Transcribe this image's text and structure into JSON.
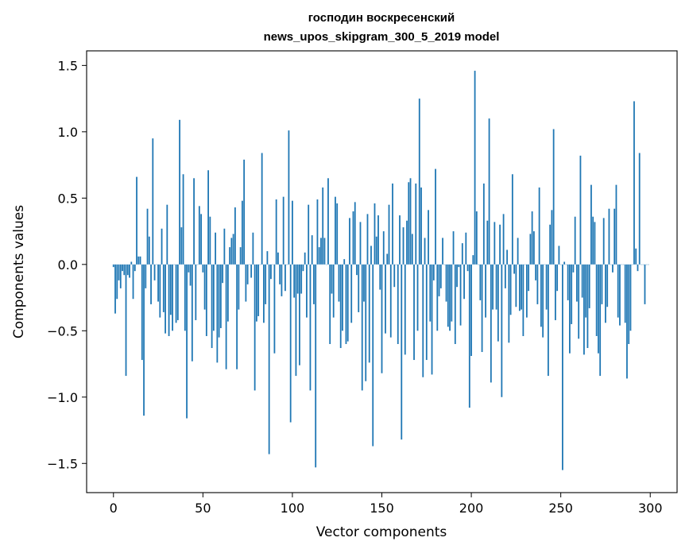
{
  "chart_data": {
    "type": "bar",
    "title_line1": "господин воскресенский",
    "title_line2": "news_upos_skipgram_300_5_2019 model",
    "xlabel": "Vector components",
    "ylabel": "Components values",
    "xlim": [
      -15,
      315
    ],
    "ylim": [
      -1.72,
      1.61
    ],
    "xticks": [
      0,
      50,
      100,
      150,
      200,
      250,
      300
    ],
    "xtick_labels": [
      "0",
      "50",
      "100",
      "150",
      "200",
      "250",
      "300"
    ],
    "yticks": [
      -1.5,
      -1.0,
      -0.5,
      0.0,
      0.5,
      1.0,
      1.5
    ],
    "ytick_labels": [
      "−1.5",
      "−1.0",
      "−0.5",
      "0.0",
      "0.5",
      "1.0",
      "1.5"
    ],
    "grid": false,
    "bar_color": "#1f77b4",
    "values": [
      -0.02,
      -0.37,
      -0.26,
      -0.12,
      -0.18,
      -0.05,
      -0.08,
      -0.84,
      -0.08,
      -0.1,
      0.02,
      -0.26,
      -0.05,
      0.66,
      0.06,
      0.06,
      -0.72,
      -1.14,
      -0.18,
      0.42,
      0.21,
      -0.3,
      0.95,
      -0.12,
      0.0,
      -0.28,
      -0.4,
      0.27,
      -0.36,
      -0.52,
      0.45,
      -0.54,
      -0.38,
      -0.5,
      0.0,
      -0.44,
      -0.42,
      1.09,
      0.28,
      0.68,
      -0.5,
      -1.16,
      -0.06,
      -0.16,
      -0.73,
      0.65,
      -0.42,
      0.0,
      0.44,
      0.38,
      -0.06,
      -0.34,
      -0.54,
      0.71,
      0.36,
      -0.63,
      -0.5,
      0.24,
      -0.74,
      -0.55,
      -0.48,
      -0.14,
      0.27,
      -0.79,
      -0.43,
      0.13,
      0.2,
      0.23,
      0.43,
      -0.79,
      -0.34,
      0.13,
      0.48,
      0.79,
      -0.28,
      -0.15,
      0.0,
      -0.1,
      0.24,
      -0.95,
      -0.43,
      -0.39,
      0.0,
      0.84,
      -0.44,
      -0.3,
      0.1,
      -1.43,
      -0.11,
      0.0,
      -0.67,
      0.49,
      0.09,
      -0.15,
      -0.24,
      0.51,
      -0.2,
      0.0,
      1.01,
      -1.19,
      0.48,
      -0.25,
      -0.84,
      -0.22,
      -0.76,
      -0.22,
      -0.05,
      0.09,
      -0.4,
      0.45,
      -0.95,
      0.22,
      -0.3,
      -1.53,
      0.49,
      0.13,
      0.2,
      0.58,
      0.2,
      0.0,
      0.65,
      -0.6,
      -0.22,
      -0.4,
      0.51,
      0.46,
      -0.28,
      -0.63,
      -0.5,
      0.04,
      -0.6,
      -0.58,
      0.35,
      -0.44,
      0.4,
      0.47,
      -0.08,
      -0.36,
      0.32,
      -0.95,
      -0.28,
      -0.88,
      0.38,
      -0.74,
      0.14,
      -1.37,
      0.46,
      0.21,
      0.37,
      -0.19,
      -0.82,
      0.25,
      -0.52,
      0.08,
      0.45,
      -0.55,
      0.61,
      -0.17,
      0.0,
      -0.6,
      0.37,
      -1.32,
      0.28,
      -0.68,
      0.33,
      0.62,
      0.65,
      0.23,
      -0.72,
      0.61,
      -0.5,
      1.25,
      0.58,
      -0.85,
      0.2,
      -0.72,
      0.41,
      -0.43,
      -0.83,
      -0.12,
      0.72,
      -0.5,
      -0.24,
      -0.18,
      0.2,
      0.0,
      -0.28,
      -0.47,
      -0.5,
      -0.43,
      0.25,
      -0.6,
      -0.17,
      -0.02,
      -0.46,
      0.16,
      -0.26,
      0.24,
      -0.05,
      -1.08,
      -0.69,
      0.07,
      1.46,
      0.4,
      0.0,
      -0.27,
      -0.66,
      0.61,
      -0.4,
      0.33,
      1.1,
      -0.89,
      -0.34,
      0.32,
      -0.34,
      -0.58,
      0.3,
      -1.0,
      0.38,
      -0.18,
      0.11,
      -0.59,
      -0.38,
      0.68,
      -0.07,
      -0.32,
      0.2,
      -0.35,
      -0.34,
      -0.54,
      0.0,
      -0.4,
      -0.2,
      0.23,
      0.4,
      0.25,
      -0.12,
      -0.3,
      0.58,
      -0.47,
      -0.55,
      0.0,
      -0.34,
      -0.84,
      0.3,
      0.41,
      1.02,
      -0.42,
      -0.2,
      0.14,
      0.0,
      -1.55,
      0.02,
      0.0,
      -0.27,
      -0.67,
      -0.45,
      -0.06,
      0.36,
      -0.28,
      -0.56,
      0.82,
      -0.25,
      -0.68,
      -0.4,
      -0.63,
      -0.33,
      0.6,
      0.36,
      0.32,
      -0.54,
      -0.67,
      -0.84,
      -0.3,
      0.35,
      -0.44,
      -0.32,
      0.42,
      0.0,
      -0.06,
      0.42,
      0.6,
      -0.4,
      -0.46,
      0.0,
      0.0,
      -0.44,
      -0.86,
      -0.6,
      -0.5,
      0.0,
      1.23,
      0.12,
      -0.05,
      0.84,
      0.0,
      0.0,
      -0.3,
      0.0,
      0.0
    ]
  }
}
